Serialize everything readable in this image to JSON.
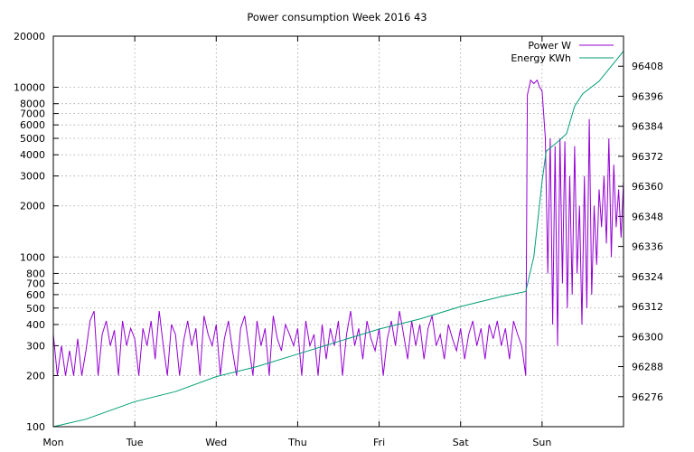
{
  "chart_data": {
    "type": "line",
    "title": "Power consumption Week 2016 43",
    "x_ticks": [
      "Mon",
      "Tue",
      "Wed",
      "Thu",
      "Fri",
      "Sat",
      "Sun"
    ],
    "y_left": {
      "scale": "log",
      "range": [
        100,
        20000
      ],
      "ticks": [
        100,
        200,
        300,
        400,
        500,
        600,
        700,
        800,
        1000,
        2000,
        3000,
        4000,
        5000,
        6000,
        7000,
        8000,
        10000,
        20000
      ]
    },
    "y_right": {
      "scale": "linear",
      "range": [
        96264,
        96420
      ],
      "ticks": [
        96276,
        96288,
        96300,
        96312,
        96324,
        96336,
        96348,
        96360,
        96372,
        96384,
        96396,
        96408
      ]
    },
    "grid": true,
    "legend_position": "top-right",
    "series": [
      {
        "name": "Power W",
        "axis": "left",
        "color": "#9400d3",
        "points": [
          [
            0.0,
            350
          ],
          [
            0.05,
            200
          ],
          [
            0.1,
            300
          ],
          [
            0.15,
            200
          ],
          [
            0.2,
            280
          ],
          [
            0.25,
            200
          ],
          [
            0.3,
            330
          ],
          [
            0.35,
            200
          ],
          [
            0.4,
            280
          ],
          [
            0.45,
            420
          ],
          [
            0.5,
            480
          ],
          [
            0.55,
            200
          ],
          [
            0.6,
            350
          ],
          [
            0.65,
            420
          ],
          [
            0.7,
            300
          ],
          [
            0.75,
            370
          ],
          [
            0.8,
            200
          ],
          [
            0.85,
            420
          ],
          [
            0.9,
            300
          ],
          [
            0.95,
            380
          ],
          [
            1.0,
            330
          ],
          [
            1.05,
            200
          ],
          [
            1.1,
            380
          ],
          [
            1.15,
            300
          ],
          [
            1.2,
            420
          ],
          [
            1.25,
            250
          ],
          [
            1.3,
            480
          ],
          [
            1.35,
            300
          ],
          [
            1.4,
            200
          ],
          [
            1.45,
            400
          ],
          [
            1.5,
            350
          ],
          [
            1.55,
            200
          ],
          [
            1.6,
            320
          ],
          [
            1.65,
            420
          ],
          [
            1.7,
            300
          ],
          [
            1.75,
            380
          ],
          [
            1.8,
            200
          ],
          [
            1.85,
            450
          ],
          [
            1.9,
            350
          ],
          [
            1.95,
            300
          ],
          [
            2.0,
            400
          ],
          [
            2.05,
            200
          ],
          [
            2.1,
            330
          ],
          [
            2.15,
            420
          ],
          [
            2.2,
            280
          ],
          [
            2.25,
            200
          ],
          [
            2.3,
            380
          ],
          [
            2.35,
            450
          ],
          [
            2.4,
            300
          ],
          [
            2.45,
            200
          ],
          [
            2.5,
            420
          ],
          [
            2.55,
            300
          ],
          [
            2.6,
            380
          ],
          [
            2.65,
            200
          ],
          [
            2.7,
            450
          ],
          [
            2.75,
            330
          ],
          [
            2.8,
            280
          ],
          [
            2.85,
            400
          ],
          [
            2.9,
            350
          ],
          [
            2.95,
            300
          ],
          [
            3.0,
            380
          ],
          [
            3.05,
            200
          ],
          [
            3.1,
            420
          ],
          [
            3.15,
            300
          ],
          [
            3.2,
            350
          ],
          [
            3.25,
            200
          ],
          [
            3.3,
            400
          ],
          [
            3.35,
            250
          ],
          [
            3.4,
            380
          ],
          [
            3.45,
            300
          ],
          [
            3.5,
            420
          ],
          [
            3.55,
            200
          ],
          [
            3.6,
            350
          ],
          [
            3.65,
            480
          ],
          [
            3.7,
            300
          ],
          [
            3.75,
            380
          ],
          [
            3.8,
            250
          ],
          [
            3.85,
            420
          ],
          [
            3.9,
            330
          ],
          [
            3.95,
            280
          ],
          [
            4.0,
            380
          ],
          [
            4.05,
            200
          ],
          [
            4.1,
            330
          ],
          [
            4.15,
            420
          ],
          [
            4.2,
            300
          ],
          [
            4.25,
            480
          ],
          [
            4.3,
            350
          ],
          [
            4.35,
            250
          ],
          [
            4.4,
            420
          ],
          [
            4.45,
            300
          ],
          [
            4.5,
            400
          ],
          [
            4.55,
            250
          ],
          [
            4.6,
            380
          ],
          [
            4.65,
            450
          ],
          [
            4.7,
            300
          ],
          [
            4.75,
            350
          ],
          [
            4.8,
            250
          ],
          [
            4.85,
            400
          ],
          [
            4.9,
            330
          ],
          [
            4.95,
            280
          ],
          [
            5.0,
            380
          ],
          [
            5.05,
            250
          ],
          [
            5.1,
            350
          ],
          [
            5.15,
            420
          ],
          [
            5.2,
            300
          ],
          [
            5.25,
            380
          ],
          [
            5.3,
            250
          ],
          [
            5.35,
            400
          ],
          [
            5.4,
            330
          ],
          [
            5.45,
            420
          ],
          [
            5.5,
            300
          ],
          [
            5.55,
            380
          ],
          [
            5.6,
            250
          ],
          [
            5.65,
            420
          ],
          [
            5.7,
            350
          ],
          [
            5.75,
            300
          ],
          [
            5.8,
            200
          ],
          [
            5.82,
            9000
          ],
          [
            5.86,
            11000
          ],
          [
            5.9,
            10500
          ],
          [
            5.94,
            11000
          ],
          [
            5.97,
            10000
          ],
          [
            6.0,
            9500
          ],
          [
            6.04,
            5000
          ],
          [
            6.07,
            800
          ],
          [
            6.1,
            5000
          ],
          [
            6.13,
            400
          ],
          [
            6.16,
            4500
          ],
          [
            6.19,
            300
          ],
          [
            6.22,
            5000
          ],
          [
            6.25,
            700
          ],
          [
            6.28,
            4800
          ],
          [
            6.31,
            500
          ],
          [
            6.34,
            3000
          ],
          [
            6.37,
            600
          ],
          [
            6.4,
            4500
          ],
          [
            6.43,
            800
          ],
          [
            6.46,
            2000
          ],
          [
            6.49,
            400
          ],
          [
            6.52,
            3000
          ],
          [
            6.55,
            500
          ],
          [
            6.58,
            6500
          ],
          [
            6.61,
            600
          ],
          [
            6.64,
            2000
          ],
          [
            6.67,
            900
          ],
          [
            6.7,
            2500
          ],
          [
            6.73,
            1500
          ],
          [
            6.76,
            3000
          ],
          [
            6.79,
            1200
          ],
          [
            6.82,
            5000
          ],
          [
            6.85,
            1000
          ],
          [
            6.88,
            3500
          ],
          [
            6.91,
            1500
          ],
          [
            6.94,
            2500
          ],
          [
            6.97,
            1300
          ],
          [
            7.0,
            2800
          ]
        ]
      },
      {
        "name": "Energy KWh",
        "axis": "right",
        "color": "#009e73",
        "points": [
          [
            0.0,
            96264
          ],
          [
            0.4,
            96267
          ],
          [
            1.0,
            96274
          ],
          [
            1.5,
            96278
          ],
          [
            2.0,
            96284
          ],
          [
            2.5,
            96288
          ],
          [
            3.0,
            96293
          ],
          [
            3.5,
            96298
          ],
          [
            4.0,
            96303
          ],
          [
            4.5,
            96307
          ],
          [
            5.0,
            96312
          ],
          [
            5.5,
            96316
          ],
          [
            5.8,
            96318
          ],
          [
            5.9,
            96332
          ],
          [
            6.0,
            96362
          ],
          [
            6.05,
            96374
          ],
          [
            6.2,
            96378
          ],
          [
            6.3,
            96381
          ],
          [
            6.4,
            96392
          ],
          [
            6.5,
            96397
          ],
          [
            6.7,
            96402
          ],
          [
            6.85,
            96408
          ],
          [
            7.0,
            96414
          ]
        ]
      }
    ]
  }
}
